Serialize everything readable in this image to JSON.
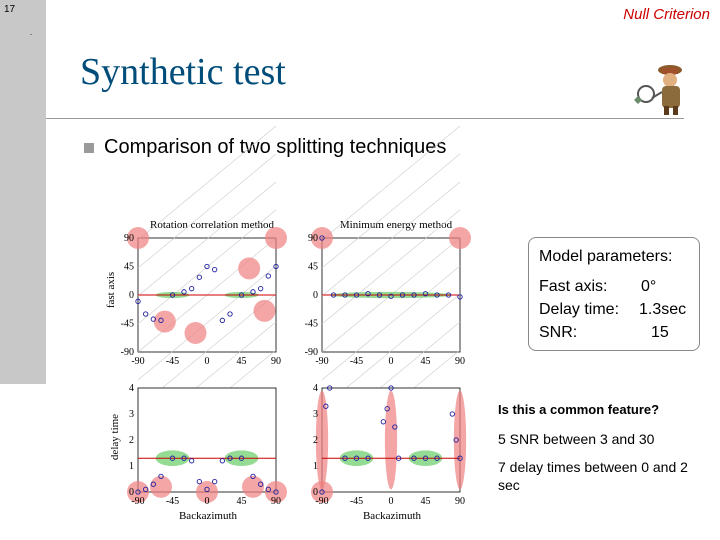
{
  "slide": {
    "number": "17",
    "dot": ".",
    "header": "Null Criterion"
  },
  "title": "Synthetic test",
  "bullet": "Comparison of two splitting techniques",
  "plots": {
    "col_titles": [
      "Rotation correlation method",
      "Minimum energy method"
    ],
    "row_labels": [
      "fast axis",
      "delay time"
    ],
    "xlabel": "Backazimuth",
    "x_ticks": [
      "-90",
      "-45",
      "0",
      "45",
      "90"
    ],
    "fast_y_ticks": [
      "90",
      "45",
      "0",
      "-45",
      "-90"
    ],
    "delay_y_ticks": [
      "4",
      "3",
      "2",
      "1",
      "0"
    ]
  },
  "model": {
    "title": "Model parameters:",
    "fast_label": "Fast axis:",
    "fast_value": "0°",
    "delay_label": "Delay time:",
    "delay_value": "1.3sec",
    "snr_label": "SNR:",
    "snr_value": "15"
  },
  "question": "Is this a common feature?",
  "notes": [
    "5 SNR between 3 and 30",
    "7 delay times between 0 and 2 sec"
  ],
  "colors": {
    "title": "#004d7a",
    "header": "#cc0000",
    "red_region": "#f08080",
    "green_region": "#66cc66",
    "marker": "#2020a0",
    "model_line": "#cc0000"
  },
  "chart_data": [
    {
      "type": "scatter",
      "title": "Rotation correlation method",
      "ylabel": "fast axis",
      "xlim": [
        -90,
        90
      ],
      "ylim": [
        -90,
        90
      ],
      "series": [
        {
          "x": [
            -90,
            -80,
            -70,
            -60,
            -45,
            -30,
            -20,
            -10,
            0,
            10,
            20,
            30,
            45,
            60,
            70,
            80,
            90
          ],
          "y": [
            -10,
            -30,
            -38,
            -40,
            0,
            5,
            10,
            28,
            45,
            40,
            -40,
            -30,
            0,
            5,
            10,
            30,
            45
          ]
        }
      ]
    },
    {
      "type": "scatter",
      "title": "Minimum energy method",
      "xlim": [
        -90,
        90
      ],
      "ylim": [
        -90,
        90
      ],
      "series": [
        {
          "x": [
            -90,
            -75,
            -60,
            -45,
            -30,
            -15,
            0,
            15,
            30,
            45,
            60,
            75,
            90
          ],
          "y": [
            90,
            0,
            0,
            0,
            2,
            0,
            -2,
            0,
            0,
            2,
            0,
            0,
            -3
          ]
        }
      ]
    },
    {
      "type": "scatter",
      "xlabel": "Backazimuth",
      "ylabel": "delay time",
      "xlim": [
        -90,
        90
      ],
      "ylim": [
        0,
        4
      ],
      "series": [
        {
          "x": [
            -90,
            -80,
            -70,
            -60,
            -45,
            -30,
            -20,
            -10,
            0,
            10,
            20,
            30,
            45,
            60,
            70,
            80,
            90
          ],
          "y": [
            0,
            0.1,
            0.3,
            0.6,
            1.3,
            1.3,
            1.2,
            0.4,
            0.1,
            0.4,
            1.2,
            1.3,
            1.3,
            0.6,
            0.3,
            0.1,
            0
          ]
        }
      ]
    },
    {
      "type": "scatter",
      "xlabel": "Backazimuth",
      "xlim": [
        -90,
        90
      ],
      "ylim": [
        0,
        4
      ],
      "series": [
        {
          "x": [
            -90,
            -85,
            -80,
            -60,
            -45,
            -30,
            -10,
            -5,
            0,
            5,
            10,
            30,
            45,
            60,
            80,
            85,
            90
          ],
          "y": [
            0,
            3.3,
            4,
            1.3,
            1.3,
            1.3,
            2.7,
            3.2,
            4,
            2.5,
            1.3,
            1.3,
            1.3,
            1.3,
            3,
            2,
            1.3
          ]
        }
      ]
    }
  ]
}
